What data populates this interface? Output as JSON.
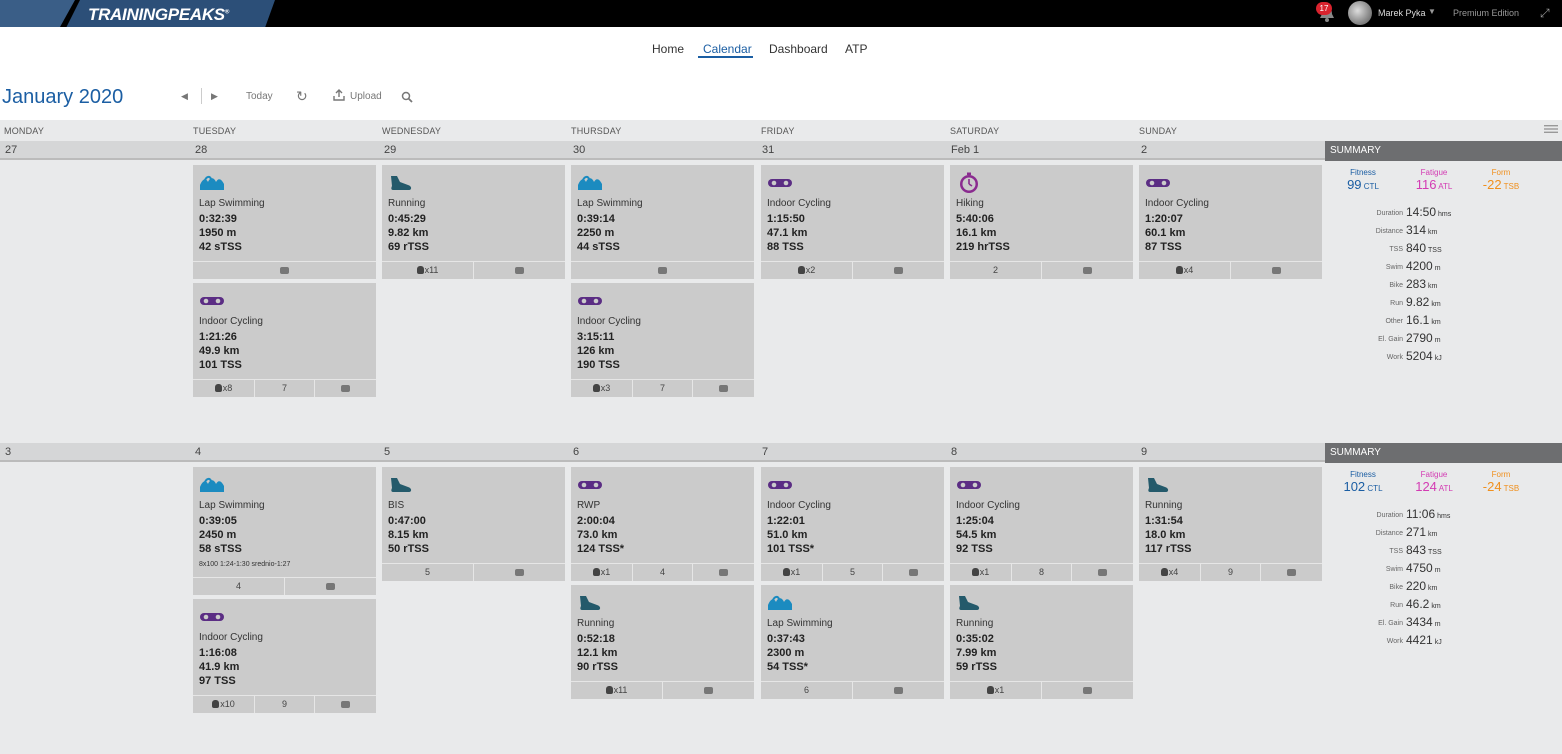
{
  "brand": {
    "name": "TRAININGPEAKS",
    "tm": "®",
    "colors": {
      "dark_blue": "#1f3f66",
      "accent_blue": "#1b5ea3",
      "swim": "#1b8bc0",
      "bike": "#5b2d84",
      "run": "#245a6b",
      "hike": "#8a2b8f"
    }
  },
  "topbar": {
    "notification_count": "17",
    "user_name": "Marek Pyka",
    "edition": "Premium Edition"
  },
  "nav": {
    "home": "Home",
    "calendar": "Calendar",
    "dashboard": "Dashboard",
    "atp": "ATP"
  },
  "toolbar": {
    "month": "January",
    "year": "2020",
    "today": "Today",
    "upload": "Upload"
  },
  "weekdays": [
    "MONDAY",
    "TUESDAY",
    "WEDNESDAY",
    "THURSDAY",
    "FRIDAY",
    "SATURDAY",
    "SUNDAY"
  ],
  "weeks": [
    {
      "dates": [
        "27",
        "28",
        "29",
        "30",
        "31",
        "Feb 1",
        "2"
      ],
      "summary_label": "SUMMARY",
      "fitness": {
        "label": "Fitness",
        "value": "99",
        "unit": "CTL"
      },
      "fatigue": {
        "label": "Fatigue",
        "value": "116",
        "unit": "ATL"
      },
      "form": {
        "label": "Form",
        "value": "-22",
        "unit": "TSB"
      },
      "stats": [
        {
          "label": "Duration",
          "value": "14:50",
          "unit": "hms"
        },
        {
          "label": "Distance",
          "value": "314",
          "unit": "km"
        },
        {
          "label": "TSS",
          "value": "840",
          "unit": "TSS"
        },
        {
          "label": "Swim",
          "value": "4200",
          "unit": "m"
        },
        {
          "label": "Bike",
          "value": "283",
          "unit": "km"
        },
        {
          "label": "Run",
          "value": "9.82",
          "unit": "km"
        },
        {
          "label": "Other",
          "value": "16.1",
          "unit": "km"
        },
        {
          "label": "El. Gain",
          "value": "2790",
          "unit": "m"
        },
        {
          "label": "Work",
          "value": "5204",
          "unit": "kJ"
        }
      ],
      "cards": [
        {
          "day": 1,
          "icon": "swim-icon",
          "title": "Lap Swimming",
          "lines": [
            "0:32:39",
            "1950 m",
            "42 sTSS"
          ],
          "footer": [
            {
              "type": "comment-icon"
            }
          ]
        },
        {
          "day": 1,
          "icon": "bike-icon",
          "title": "Indoor Cycling",
          "lines": [
            "1:21:26",
            "49.9 km",
            "101 TSS"
          ],
          "footer": [
            {
              "type": "kb",
              "text": "x8"
            },
            {
              "type": "text",
              "text": "7"
            },
            {
              "type": "comment-icon"
            }
          ]
        },
        {
          "day": 2,
          "icon": "shoe-icon",
          "title": "Running",
          "lines": [
            "0:45:29",
            "9.82 km",
            "69 rTSS"
          ],
          "footer": [
            {
              "type": "kb",
              "text": "x11"
            },
            {
              "type": "comment-icon"
            }
          ]
        },
        {
          "day": 3,
          "icon": "swim-icon",
          "title": "Lap Swimming",
          "lines": [
            "0:39:14",
            "2250 m",
            "44 sTSS"
          ],
          "footer": [
            {
              "type": "comment-icon"
            }
          ]
        },
        {
          "day": 3,
          "icon": "bike-icon",
          "title": "Indoor Cycling",
          "lines": [
            "3:15:11",
            "126 km",
            "190 TSS"
          ],
          "footer": [
            {
              "type": "kb",
              "text": "x3"
            },
            {
              "type": "text",
              "text": "7"
            },
            {
              "type": "comment-icon"
            }
          ]
        },
        {
          "day": 4,
          "icon": "bike-icon",
          "title": "Indoor Cycling",
          "lines": [
            "1:15:50",
            "47.1 km",
            "88 TSS"
          ],
          "footer": [
            {
              "type": "kb",
              "text": "x2"
            },
            {
              "type": "comment-icon"
            }
          ]
        },
        {
          "day": 5,
          "icon": "stopwatch-icon",
          "title": "Hiking",
          "lines": [
            "5:40:06",
            "16.1 km",
            "219 hrTSS"
          ],
          "footer": [
            {
              "type": "text",
              "text": "2"
            },
            {
              "type": "comment-icon"
            }
          ]
        },
        {
          "day": 6,
          "icon": "bike-icon",
          "title": "Indoor Cycling",
          "lines": [
            "1:20:07",
            "60.1 km",
            "87 TSS"
          ],
          "footer": [
            {
              "type": "kb",
              "text": "x4"
            },
            {
              "type": "comment-icon"
            }
          ]
        }
      ]
    },
    {
      "dates": [
        "3",
        "4",
        "5",
        "6",
        "7",
        "8",
        "9"
      ],
      "summary_label": "SUMMARY",
      "fitness": {
        "label": "Fitness",
        "value": "102",
        "unit": "CTL"
      },
      "fatigue": {
        "label": "Fatigue",
        "value": "124",
        "unit": "ATL"
      },
      "form": {
        "label": "Form",
        "value": "-24",
        "unit": "TSB"
      },
      "stats": [
        {
          "label": "Duration",
          "value": "11:06",
          "unit": "hms"
        },
        {
          "label": "Distance",
          "value": "271",
          "unit": "km"
        },
        {
          "label": "TSS",
          "value": "843",
          "unit": "TSS"
        },
        {
          "label": "Swim",
          "value": "4750",
          "unit": "m"
        },
        {
          "label": "Bike",
          "value": "220",
          "unit": "km"
        },
        {
          "label": "Run",
          "value": "46.2",
          "unit": "km"
        },
        {
          "label": "El. Gain",
          "value": "3434",
          "unit": "m"
        },
        {
          "label": "Work",
          "value": "4421",
          "unit": "kJ"
        }
      ],
      "cards": [
        {
          "day": 1,
          "icon": "swim-icon",
          "title": "Lap Swimming",
          "lines": [
            "0:39:05",
            "2450 m",
            "58 sTSS"
          ],
          "note": "8x100 1:24-1:30 srednio-1:27",
          "footer": [
            {
              "type": "text",
              "text": "4"
            },
            {
              "type": "comment-icon"
            }
          ]
        },
        {
          "day": 1,
          "icon": "bike-icon",
          "title": "Indoor Cycling",
          "lines": [
            "1:16:08",
            "41.9 km",
            "97 TSS"
          ],
          "footer": [
            {
              "type": "kb",
              "text": "x10"
            },
            {
              "type": "text",
              "text": "9"
            },
            {
              "type": "comment-icon"
            }
          ]
        },
        {
          "day": 2,
          "icon": "shoe-icon",
          "title": "BIS",
          "lines": [
            "0:47:00",
            "8.15 km",
            "50 rTSS"
          ],
          "footer": [
            {
              "type": "text",
              "text": "5"
            },
            {
              "type": "comment-icon"
            }
          ]
        },
        {
          "day": 3,
          "icon": "bike-icon",
          "title": "RWP",
          "lines": [
            "2:00:04",
            "73.0 km",
            "124 TSS*"
          ],
          "footer": [
            {
              "type": "kb",
              "text": "x1"
            },
            {
              "type": "text",
              "text": "4"
            },
            {
              "type": "comment-icon"
            }
          ]
        },
        {
          "day": 3,
          "icon": "shoe-icon",
          "title": "Running",
          "lines": [
            "0:52:18",
            "12.1 km",
            "90 rTSS"
          ],
          "footer": [
            {
              "type": "kb",
              "text": "x11"
            },
            {
              "type": "comment-icon"
            }
          ]
        },
        {
          "day": 4,
          "icon": "bike-icon",
          "title": "Indoor Cycling",
          "lines": [
            "1:22:01",
            "51.0 km",
            "101 TSS*"
          ],
          "footer": [
            {
              "type": "kb",
              "text": "x1"
            },
            {
              "type": "text",
              "text": "5"
            },
            {
              "type": "comment-icon"
            }
          ]
        },
        {
          "day": 4,
          "icon": "swim-icon",
          "title": "Lap Swimming",
          "lines": [
            "0:37:43",
            "2300 m",
            "54 TSS*"
          ],
          "footer": [
            {
              "type": "text",
              "text": "6"
            },
            {
              "type": "comment-icon"
            }
          ]
        },
        {
          "day": 5,
          "icon": "bike-icon",
          "title": "Indoor Cycling",
          "lines": [
            "1:25:04",
            "54.5 km",
            "92 TSS"
          ],
          "footer": [
            {
              "type": "kb",
              "text": "x1"
            },
            {
              "type": "text",
              "text": "8"
            },
            {
              "type": "comment-icon"
            }
          ]
        },
        {
          "day": 5,
          "icon": "shoe-icon",
          "title": "Running",
          "lines": [
            "0:35:02",
            "7.99 km",
            "59 rTSS"
          ],
          "footer": [
            {
              "type": "kb",
              "text": "x1"
            },
            {
              "type": "comment-icon"
            }
          ]
        },
        {
          "day": 6,
          "icon": "shoe-icon",
          "title": "Running",
          "lines": [
            "1:31:54",
            "18.0 km",
            "117 rTSS"
          ],
          "footer": [
            {
              "type": "kb",
              "text": "x4"
            },
            {
              "type": "text",
              "text": "9"
            },
            {
              "type": "comment-icon"
            }
          ]
        }
      ]
    }
  ]
}
